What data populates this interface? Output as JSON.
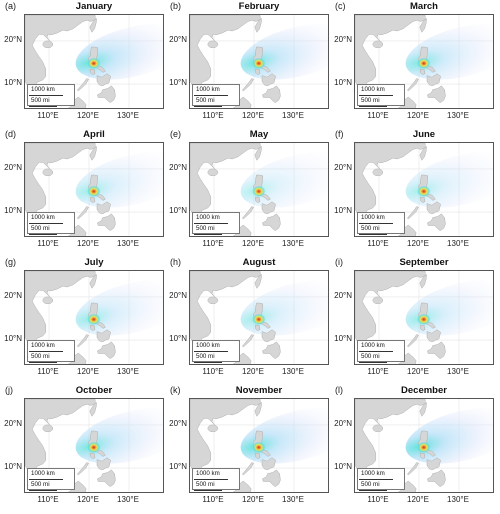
{
  "panels": [
    {
      "letter": "(a)",
      "title": "January"
    },
    {
      "letter": "(b)",
      "title": "February"
    },
    {
      "letter": "(c)",
      "title": "March"
    },
    {
      "letter": "(d)",
      "title": "April"
    },
    {
      "letter": "(e)",
      "title": "May"
    },
    {
      "letter": "(f)",
      "title": "June"
    },
    {
      "letter": "(g)",
      "title": "July"
    },
    {
      "letter": "(h)",
      "title": "August"
    },
    {
      "letter": "(i)",
      "title": "September"
    },
    {
      "letter": "(j)",
      "title": "October"
    },
    {
      "letter": "(k)",
      "title": "November"
    },
    {
      "letter": "(l)",
      "title": "December"
    }
  ],
  "axes": {
    "y_ticks": [
      "20°N",
      "10°N"
    ],
    "x_ticks": [
      "110°E",
      "120°E",
      "130°E"
    ]
  },
  "scale_bar": {
    "km": "1000 km",
    "mi": "500 mi"
  },
  "colors": {
    "land": "#d6d6d6",
    "coast": "#b0b0b0",
    "grid": "#e4e4e4",
    "plume_outer": "#dfe6fb",
    "plume_mid": "#9fd7f5",
    "plume_inner": "#4fe0d8",
    "hotspot_yellow": "#f3e34a",
    "hotspot_red": "#d8261a"
  }
}
